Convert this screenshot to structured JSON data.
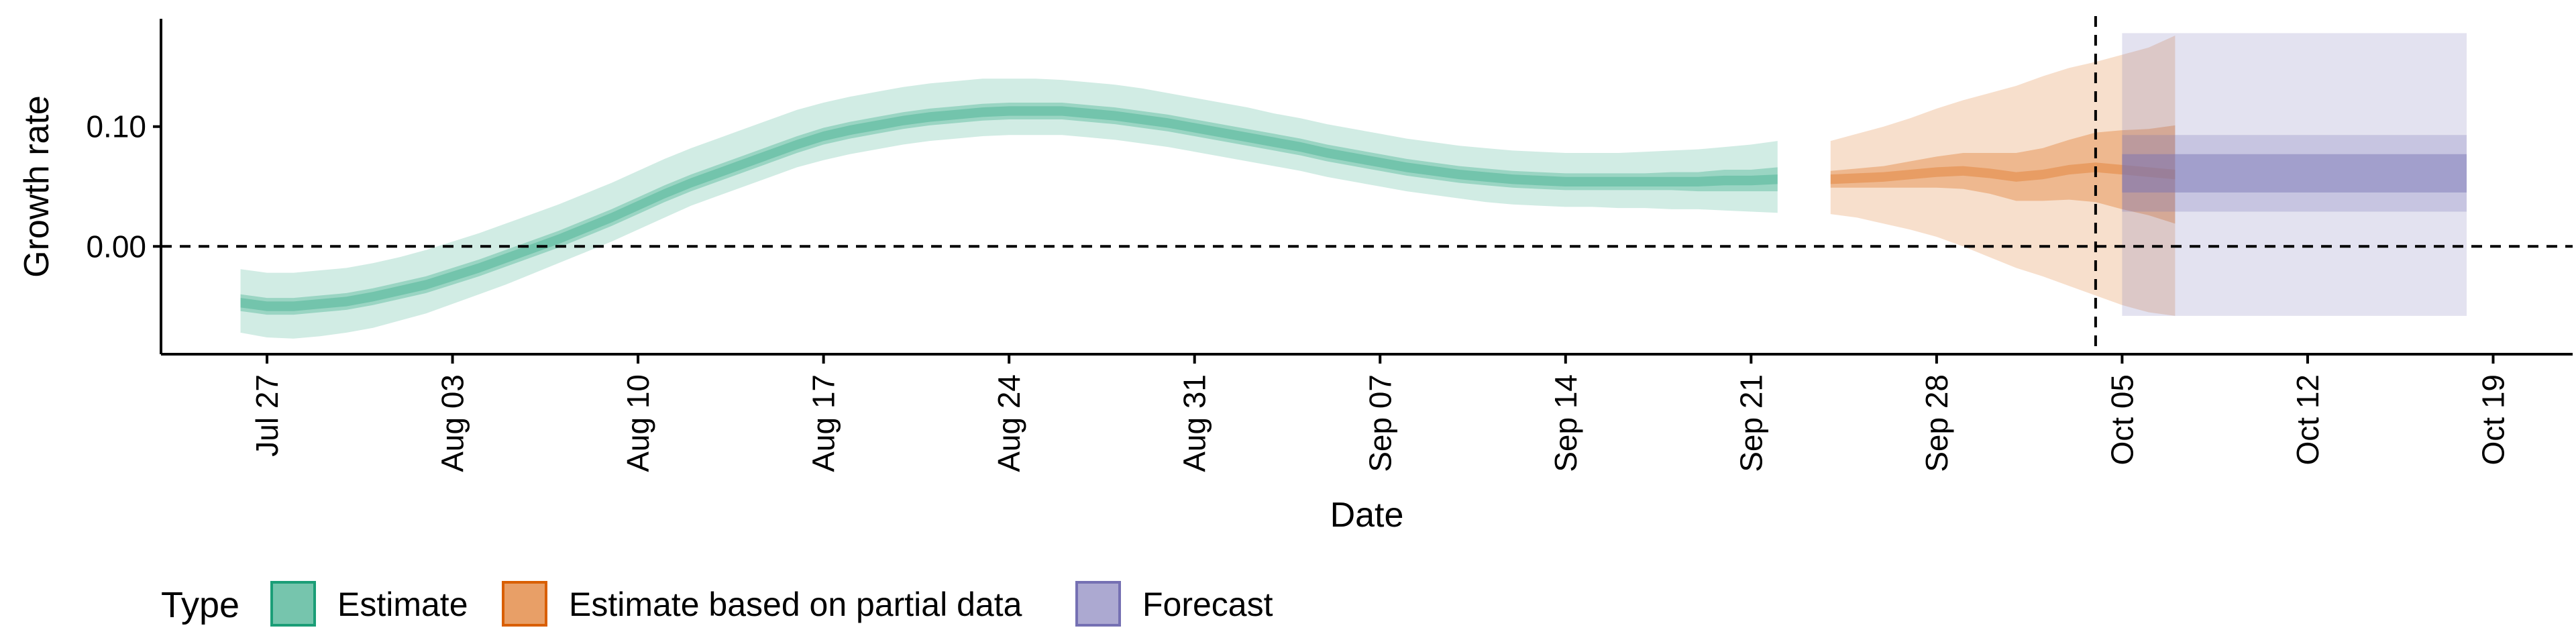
{
  "chart_data": {
    "type": "area",
    "title": "",
    "xlabel": "Date",
    "ylabel": "Growth rate",
    "x_ticks": [
      "Jul 27",
      "Aug 03",
      "Aug 10",
      "Aug 17",
      "Aug 24",
      "Aug 31",
      "Sep 07",
      "Sep 14",
      "Sep 21",
      "Sep 28",
      "Oct 05",
      "Oct 12",
      "Oct 19"
    ],
    "y_ticks": [
      "0.00",
      "0.10"
    ],
    "xlim": [
      "2020-07-23",
      "2020-10-22"
    ],
    "ylim": [
      -0.09,
      0.19
    ],
    "reference_lines": {
      "horizontal_y": 0.0,
      "vertical_date": "2020-10-04"
    },
    "legend": {
      "title": "Type",
      "position": "bottom",
      "items": [
        {
          "label": "Estimate",
          "color": "#1b9e77"
        },
        {
          "label": "Estimate based on partial data",
          "color": "#d95f02"
        },
        {
          "label": "Forecast",
          "color": "#7570b3"
        }
      ]
    },
    "series": [
      {
        "name": "Estimate",
        "color": "#1b9e77",
        "start_date": "2020-07-26",
        "median": [
          -0.047,
          -0.05,
          -0.05,
          -0.048,
          -0.046,
          -0.042,
          -0.037,
          -0.032,
          -0.025,
          -0.018,
          -0.01,
          -0.002,
          0.006,
          0.015,
          0.024,
          0.034,
          0.044,
          0.053,
          0.061,
          0.069,
          0.077,
          0.085,
          0.092,
          0.097,
          0.101,
          0.105,
          0.108,
          0.11,
          0.112,
          0.113,
          0.113,
          0.113,
          0.111,
          0.109,
          0.106,
          0.103,
          0.099,
          0.095,
          0.091,
          0.087,
          0.083,
          0.078,
          0.074,
          0.07,
          0.066,
          0.063,
          0.06,
          0.058,
          0.056,
          0.055,
          0.054,
          0.054,
          0.054,
          0.054,
          0.054,
          0.054,
          0.055,
          0.055,
          0.056
        ],
        "ci50_lower": [
          -0.054,
          -0.057,
          -0.057,
          -0.055,
          -0.053,
          -0.049,
          -0.044,
          -0.039,
          -0.032,
          -0.025,
          -0.017,
          -0.009,
          -0.001,
          0.008,
          0.017,
          0.027,
          0.037,
          0.046,
          0.054,
          0.062,
          0.07,
          0.078,
          0.085,
          0.09,
          0.094,
          0.098,
          0.101,
          0.103,
          0.105,
          0.106,
          0.106,
          0.106,
          0.104,
          0.102,
          0.099,
          0.096,
          0.092,
          0.088,
          0.084,
          0.08,
          0.076,
          0.071,
          0.067,
          0.063,
          0.059,
          0.056,
          0.053,
          0.051,
          0.049,
          0.048,
          0.047,
          0.047,
          0.047,
          0.047,
          0.047,
          0.046,
          0.046,
          0.046,
          0.046
        ],
        "ci50_upper": [
          -0.04,
          -0.043,
          -0.043,
          -0.041,
          -0.039,
          -0.035,
          -0.03,
          -0.025,
          -0.018,
          -0.011,
          -0.003,
          0.005,
          0.013,
          0.022,
          0.031,
          0.041,
          0.051,
          0.06,
          0.068,
          0.076,
          0.084,
          0.092,
          0.099,
          0.104,
          0.108,
          0.112,
          0.115,
          0.117,
          0.119,
          0.12,
          0.12,
          0.12,
          0.118,
          0.116,
          0.113,
          0.11,
          0.106,
          0.102,
          0.098,
          0.094,
          0.09,
          0.085,
          0.081,
          0.077,
          0.073,
          0.07,
          0.067,
          0.065,
          0.063,
          0.062,
          0.061,
          0.061,
          0.061,
          0.061,
          0.062,
          0.062,
          0.064,
          0.064,
          0.066
        ],
        "ci90_lower": [
          -0.072,
          -0.076,
          -0.077,
          -0.075,
          -0.072,
          -0.068,
          -0.062,
          -0.056,
          -0.048,
          -0.04,
          -0.032,
          -0.023,
          -0.014,
          -0.005,
          0.004,
          0.014,
          0.024,
          0.034,
          0.042,
          0.05,
          0.058,
          0.066,
          0.072,
          0.077,
          0.081,
          0.085,
          0.088,
          0.09,
          0.092,
          0.093,
          0.093,
          0.093,
          0.091,
          0.089,
          0.086,
          0.083,
          0.079,
          0.075,
          0.071,
          0.067,
          0.063,
          0.058,
          0.054,
          0.05,
          0.046,
          0.043,
          0.04,
          0.037,
          0.035,
          0.034,
          0.033,
          0.033,
          0.032,
          0.032,
          0.031,
          0.031,
          0.03,
          0.029,
          0.028
        ],
        "ci90_upper": [
          -0.019,
          -0.022,
          -0.022,
          -0.02,
          -0.018,
          -0.014,
          -0.009,
          -0.003,
          0.004,
          0.011,
          0.019,
          0.027,
          0.035,
          0.044,
          0.053,
          0.063,
          0.073,
          0.082,
          0.09,
          0.098,
          0.106,
          0.114,
          0.12,
          0.125,
          0.129,
          0.133,
          0.136,
          0.138,
          0.14,
          0.14,
          0.14,
          0.139,
          0.137,
          0.135,
          0.132,
          0.128,
          0.124,
          0.12,
          0.116,
          0.111,
          0.107,
          0.102,
          0.098,
          0.094,
          0.09,
          0.087,
          0.084,
          0.082,
          0.08,
          0.079,
          0.078,
          0.078,
          0.078,
          0.079,
          0.08,
          0.081,
          0.083,
          0.085,
          0.088
        ]
      },
      {
        "name": "Estimate based on partial data",
        "color": "#d95f02",
        "start_date": "2020-09-24",
        "median": [
          0.056,
          0.057,
          0.058,
          0.06,
          0.062,
          0.063,
          0.061,
          0.058,
          0.06,
          0.064,
          0.066,
          0.064,
          0.062,
          0.06
        ],
        "ci50_lower": [
          0.049,
          0.049,
          0.049,
          0.049,
          0.049,
          0.048,
          0.044,
          0.038,
          0.038,
          0.039,
          0.037,
          0.031,
          0.026,
          0.019
        ],
        "ci50_upper": [
          0.063,
          0.065,
          0.067,
          0.071,
          0.075,
          0.078,
          0.078,
          0.078,
          0.082,
          0.089,
          0.095,
          0.097,
          0.098,
          0.101
        ],
        "ci90_lower": [
          0.027,
          0.024,
          0.019,
          0.014,
          0.008,
          0.0,
          -0.009,
          -0.018,
          -0.025,
          -0.033,
          -0.041,
          -0.049,
          -0.055,
          -0.058
        ],
        "ci90_upper": [
          0.088,
          0.094,
          0.1,
          0.107,
          0.115,
          0.122,
          0.128,
          0.134,
          0.142,
          0.149,
          0.154,
          0.16,
          0.166,
          0.176
        ]
      },
      {
        "name": "Forecast",
        "color": "#7570b3",
        "start_date": "2020-10-05",
        "end_date": "2020-10-18",
        "median": 0.061,
        "ci30_lower": 0.045,
        "ci30_upper": 0.077,
        "ci60_lower": 0.029,
        "ci60_upper": 0.093,
        "ci90_lower": -0.058,
        "ci90_upper": 0.178
      }
    ]
  }
}
